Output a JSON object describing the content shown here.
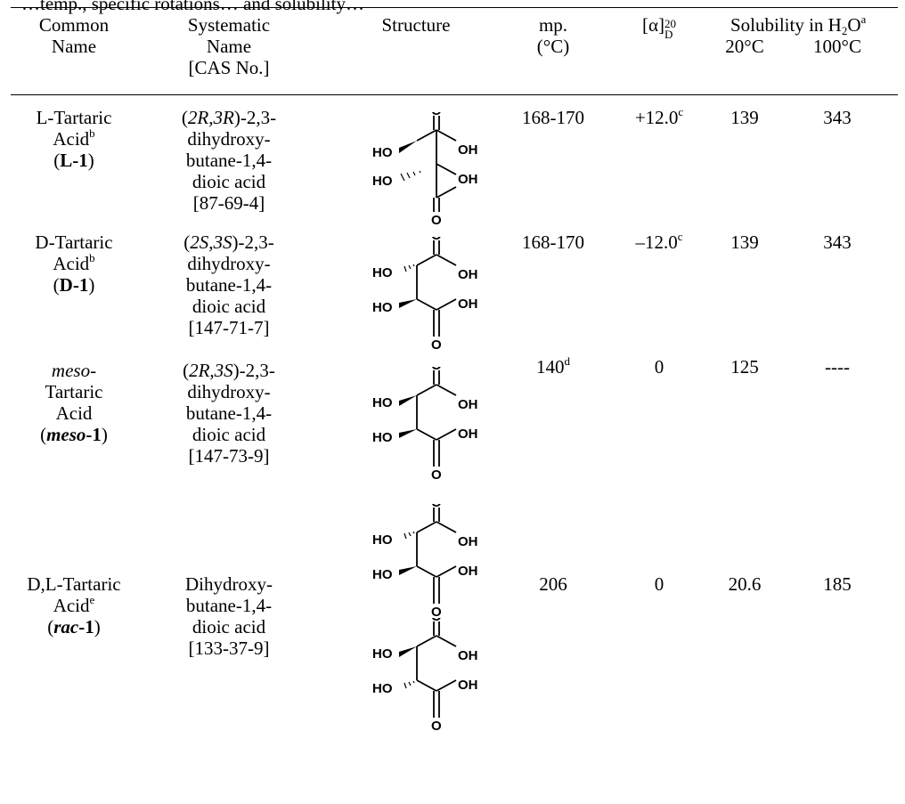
{
  "caption": "…temp., specific rotations… and solubility…",
  "headers": {
    "common": [
      "Common",
      "Name"
    ],
    "systematic": [
      "Systematic",
      "Name",
      "[CAS No.]"
    ],
    "structure": "Structure",
    "mp": [
      "mp.",
      "(°C)"
    ],
    "rotation": {
      "base": "[α]",
      "sup": "20",
      "sub": "D"
    },
    "solubility": {
      "pre": "Solubility in H",
      "sub": "2",
      "post": "O",
      "note": "a",
      "t1": "20°C",
      "t2": "100°C"
    }
  },
  "rows": [
    {
      "common": {
        "l1": "L-Tartaric",
        "l2": "Acid",
        "l2note": "b",
        "lab": "L-1"
      },
      "systematic": {
        "cfg_open": "(",
        "cfg_a": "2R",
        "cfg_mid": ",",
        "cfg_b": "3R",
        "cfg_close": ")-2,3-",
        "l2": "dihydroxy-",
        "l3": "butane-1,4-",
        "l4": "dioic acid",
        "cas": "[87-69-4]"
      },
      "mp": "168-170",
      "rotation": "+12.0",
      "rotation_note": "c",
      "sol20": "139",
      "sol100": "343"
    },
    {
      "common": {
        "l1": "D-Tartaric",
        "l2": "Acid",
        "l2note": "b",
        "lab": "D-1"
      },
      "systematic": {
        "cfg_open": "(",
        "cfg_a": "2S",
        "cfg_mid": ",",
        "cfg_b": "3S",
        "cfg_close": ")-2,3-",
        "l2": "dihydroxy-",
        "l3": "butane-1,4-",
        "l4": "dioic acid",
        "cas": "[147-71-7]"
      },
      "mp": "168-170",
      "rotation": "–12.0",
      "rotation_note": "c",
      "sol20": "139",
      "sol100": "343"
    },
    {
      "common": {
        "l1": "meso-",
        "l2": "Tartaric",
        "l3": "Acid",
        "lab_pre": "meso",
        "lab_post": "-1"
      },
      "systematic": {
        "cfg_open": "(",
        "cfg_a": "2R",
        "cfg_mid": ",",
        "cfg_b": "3S",
        "cfg_close": ")-2,3-",
        "l2": "dihydroxy-",
        "l3": "butane-1,4-",
        "l4": "dioic acid",
        "cas": "[147-73-9]"
      },
      "mp": "140",
      "mp_note": "d",
      "rotation": "0",
      "sol20": "125",
      "sol100": "----"
    },
    {
      "common": {
        "l1": "D,L-Tartaric",
        "l2": "Acid",
        "l2note": "e",
        "lab_pre": "rac",
        "lab_post": "-1"
      },
      "systematic": {
        "l1": "Dihydroxy-",
        "l2": "butane-1,4-",
        "l3": "dioic acid",
        "cas": "[133-37-9]"
      },
      "mp": "206",
      "rotation": "0",
      "sol20": "20.6",
      "sol100": "185"
    }
  ],
  "structure_labels": {
    "ho": "HO",
    "oh": "OH",
    "o": "O"
  }
}
